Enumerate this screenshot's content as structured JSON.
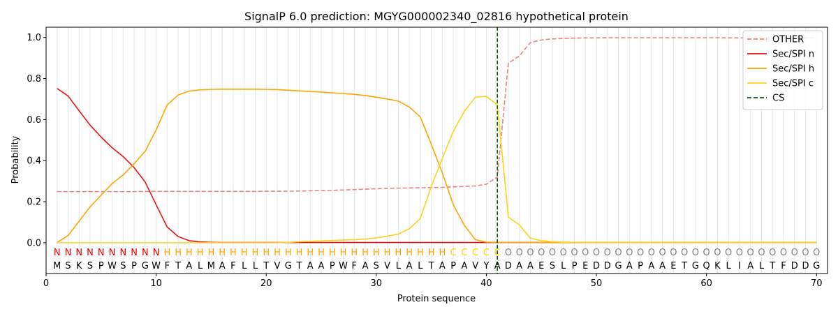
{
  "chart_data": {
    "type": "line",
    "title": "SignalP 6.0 prediction: MGYG000002340_02816 hypothetical protein",
    "xlabel": "Protein sequence",
    "ylabel": "Probability",
    "xlim": [
      0,
      71
    ],
    "ylim": [
      -0.15,
      1.05
    ],
    "xticks": [
      0,
      10,
      20,
      30,
      40,
      50,
      60,
      70
    ],
    "yticks": [
      0.0,
      0.2,
      0.4,
      0.6,
      0.8,
      1.0
    ],
    "ytick_labels": [
      "0.0",
      "0.2",
      "0.4",
      "0.6",
      "0.8",
      "1.0"
    ],
    "grid": "vertical lines at each residue",
    "legend_position": "top-right",
    "sequence": [
      "M",
      "S",
      "K",
      "S",
      "P",
      "W",
      "S",
      "P",
      "G",
      "W",
      "F",
      "T",
      "A",
      "L",
      "M",
      "A",
      "F",
      "L",
      "L",
      "T",
      "V",
      "G",
      "T",
      "A",
      "A",
      "P",
      "W",
      "F",
      "A",
      "S",
      "V",
      "L",
      "A",
      "L",
      "T",
      "A",
      "P",
      "A",
      "V",
      "Y",
      "A",
      "D",
      "A",
      "A",
      "E",
      "S",
      "L",
      "P",
      "E",
      "D",
      "D",
      "G",
      "A",
      "P",
      "A",
      "A",
      "E",
      "T",
      "G",
      "Q",
      "K",
      "L",
      "I",
      "A",
      "L",
      "T",
      "F",
      "D",
      "D",
      "G"
    ],
    "region_labels": [
      "N",
      "N",
      "N",
      "N",
      "N",
      "N",
      "N",
      "N",
      "N",
      "N",
      "H",
      "H",
      "H",
      "H",
      "H",
      "H",
      "H",
      "H",
      "H",
      "H",
      "H",
      "H",
      "H",
      "H",
      "H",
      "H",
      "H",
      "H",
      "H",
      "H",
      "H",
      "H",
      "H",
      "H",
      "H",
      "H",
      "C",
      "C",
      "C",
      "C",
      "C",
      "O",
      "O",
      "O",
      "O",
      "O",
      "O",
      "O",
      "O",
      "O",
      "O",
      "O",
      "O",
      "O",
      "O",
      "O",
      "O",
      "O",
      "O",
      "O",
      "O",
      "O",
      "O",
      "O",
      "O",
      "O",
      "O",
      "O",
      "O",
      "O"
    ],
    "region_colors": {
      "N": "#ee0000",
      "H": "#ffa500",
      "C": "#ffd700",
      "O": "#808080"
    },
    "series": [
      {
        "name": "OTHER",
        "color": "#f08080",
        "dash": "dashed",
        "values": [
          0.249,
          0.249,
          0.249,
          0.249,
          0.249,
          0.249,
          0.249,
          0.249,
          0.25,
          0.25,
          0.25,
          0.25,
          0.25,
          0.25,
          0.25,
          0.25,
          0.25,
          0.25,
          0.25,
          0.251,
          0.251,
          0.251,
          0.252,
          0.253,
          0.254,
          0.255,
          0.257,
          0.259,
          0.261,
          0.263,
          0.265,
          0.266,
          0.267,
          0.268,
          0.269,
          0.27,
          0.272,
          0.274,
          0.277,
          0.285,
          0.32,
          0.875,
          0.91,
          0.975,
          0.988,
          0.993,
          0.995,
          0.997,
          0.998,
          0.998,
          0.999,
          0.999,
          0.999,
          0.999,
          0.999,
          0.999,
          0.999,
          0.999,
          0.999,
          0.999,
          0.999,
          0.998,
          0.998,
          0.998,
          0.998,
          0.998,
          0.998,
          0.998,
          0.998,
          0.998
        ]
      },
      {
        "name": "Sec/SPI n",
        "color": "#ee1111",
        "dash": "solid",
        "values": [
          0.752,
          0.715,
          0.643,
          0.573,
          0.515,
          0.463,
          0.42,
          0.366,
          0.296,
          0.185,
          0.077,
          0.03,
          0.01,
          0.004,
          0.002,
          0.001,
          0.001,
          0.001,
          0.001,
          0.001,
          0.001,
          0.001,
          0.001,
          0.001,
          0.001,
          0.001,
          0.001,
          0.001,
          0.001,
          0.001,
          0.001,
          0.001,
          0.001,
          0.001,
          0.001,
          0.001,
          0.001,
          0.001,
          0.001,
          0.001,
          0.001,
          0.001,
          0.001,
          0.001,
          0.001,
          0.001,
          0.001,
          0.001,
          0.001,
          0.001,
          0.001,
          0.001,
          0.001,
          0.001,
          0.001,
          0.001,
          0.001,
          0.001,
          0.001,
          0.001,
          0.001,
          0.001,
          0.001,
          0.001,
          0.001,
          0.001,
          0.001,
          0.001,
          0.001,
          0.001
        ]
      },
      {
        "name": "Sec/SPI h",
        "color": "#ffa500",
        "dash": "solid",
        "values": [
          0.001,
          0.035,
          0.105,
          0.175,
          0.232,
          0.288,
          0.33,
          0.385,
          0.445,
          0.55,
          0.671,
          0.72,
          0.739,
          0.745,
          0.747,
          0.748,
          0.748,
          0.748,
          0.748,
          0.747,
          0.746,
          0.743,
          0.74,
          0.737,
          0.734,
          0.73,
          0.727,
          0.723,
          0.717,
          0.709,
          0.7,
          0.69,
          0.661,
          0.613,
          0.48,
          0.34,
          0.185,
          0.085,
          0.015,
          0.003,
          0.002,
          0.001,
          0.001,
          0.001,
          0.001,
          0.001,
          0.001,
          0.001,
          0.001,
          0.001,
          0.001,
          0.001,
          0.001,
          0.001,
          0.001,
          0.001,
          0.001,
          0.001,
          0.001,
          0.001,
          0.001,
          0.001,
          0.001,
          0.001,
          0.001,
          0.001,
          0.001,
          0.001,
          0.001,
          0.001
        ]
      },
      {
        "name": "Sec/SPI c",
        "color": "#ffd21a",
        "dash": "solid",
        "values": [
          0.0,
          0.0,
          0.0,
          0.0,
          0.0,
          0.0,
          0.0,
          0.0,
          0.0,
          0.0,
          0.0,
          0.0,
          0.0,
          0.0,
          0.0,
          0.0,
          0.0,
          0.0,
          0.0,
          0.0,
          0.0,
          0.002,
          0.005,
          0.007,
          0.009,
          0.011,
          0.013,
          0.015,
          0.018,
          0.024,
          0.032,
          0.042,
          0.068,
          0.118,
          0.275,
          0.41,
          0.543,
          0.64,
          0.709,
          0.713,
          0.672,
          0.125,
          0.087,
          0.022,
          0.01,
          0.005,
          0.003,
          0.002,
          0.001,
          0.001,
          0.001,
          0.001,
          0.001,
          0.001,
          0.001,
          0.001,
          0.001,
          0.001,
          0.001,
          0.001,
          0.001,
          0.001,
          0.001,
          0.001,
          0.001,
          0.001,
          0.001,
          0.001,
          0.001,
          0.001
        ]
      }
    ],
    "cleavage_site": {
      "name": "CS",
      "x": 41,
      "color": "#006400",
      "dash": "dashed"
    }
  }
}
